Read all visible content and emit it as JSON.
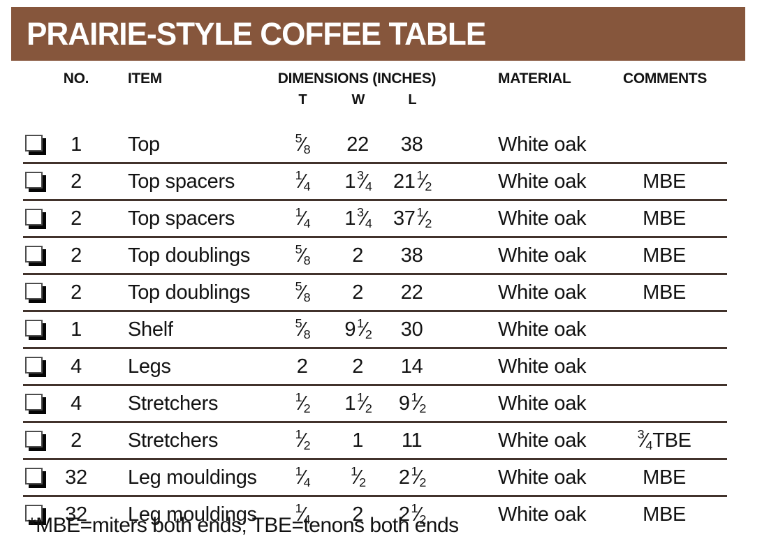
{
  "title": "PRAIRIE-STYLE COFFEE TABLE",
  "colors": {
    "header_bg": "#86563C",
    "divider": "#42332C",
    "text": "#121212"
  },
  "columns": {
    "no": "NO.",
    "item": "ITEM",
    "dimensions": "DIMENSIONS (INCHES)",
    "material": "MATERIAL",
    "comments": "COMMENTS",
    "sub": {
      "t": "T",
      "w": "W",
      "l": "L"
    }
  },
  "checkbox_icon": "shadowed-square-checkbox",
  "rows": [
    {
      "no": "1",
      "item": "Top",
      "t": "5/8",
      "w": "22",
      "l": "38",
      "material": "White oak",
      "comments": ""
    },
    {
      "no": "2",
      "item": "Top spacers",
      "t": "1/4",
      "w": "1 3/4",
      "l": "21 1/2",
      "material": "White oak",
      "comments": "MBE"
    },
    {
      "no": "2",
      "item": "Top spacers",
      "t": "1/4",
      "w": "1 3/4",
      "l": "37 1/2",
      "material": "White oak",
      "comments": "MBE"
    },
    {
      "no": "2",
      "item": "Top doublings",
      "t": "5/8",
      "w": "2",
      "l": "38",
      "material": "White oak",
      "comments": "MBE"
    },
    {
      "no": "2",
      "item": "Top doublings",
      "t": "5/8",
      "w": "2",
      "l": "22",
      "material": "White oak",
      "comments": "MBE"
    },
    {
      "no": "1",
      "item": "Shelf",
      "t": "5/8",
      "w": "9 1/2",
      "l": "30",
      "material": "White oak",
      "comments": ""
    },
    {
      "no": "4",
      "item": "Legs",
      "t": "2",
      "w": "2",
      "l": "14",
      "material": "White oak",
      "comments": ""
    },
    {
      "no": "4",
      "item": "Stretchers",
      "t": "1/2",
      "w": "1 1/2",
      "l": "9 1/2",
      "material": "White oak",
      "comments": ""
    },
    {
      "no": "2",
      "item": "Stretchers",
      "t": "1/2",
      "w": "1",
      "l": "11",
      "material": "White oak",
      "comments": "3/4 TBE"
    },
    {
      "no": "32",
      "item": "Leg mouldings",
      "t": "1/4",
      "w": "1/2",
      "l": "2 1/2",
      "material": "White oak",
      "comments": "MBE"
    },
    {
      "no": "32",
      "item": "Leg mouldings",
      "t": "1/4",
      "w": "2",
      "l": "2 1/2",
      "material": "White oak",
      "comments": "MBE"
    }
  ],
  "footnote": "*MBE=miters both ends; TBE=tenons both ends"
}
